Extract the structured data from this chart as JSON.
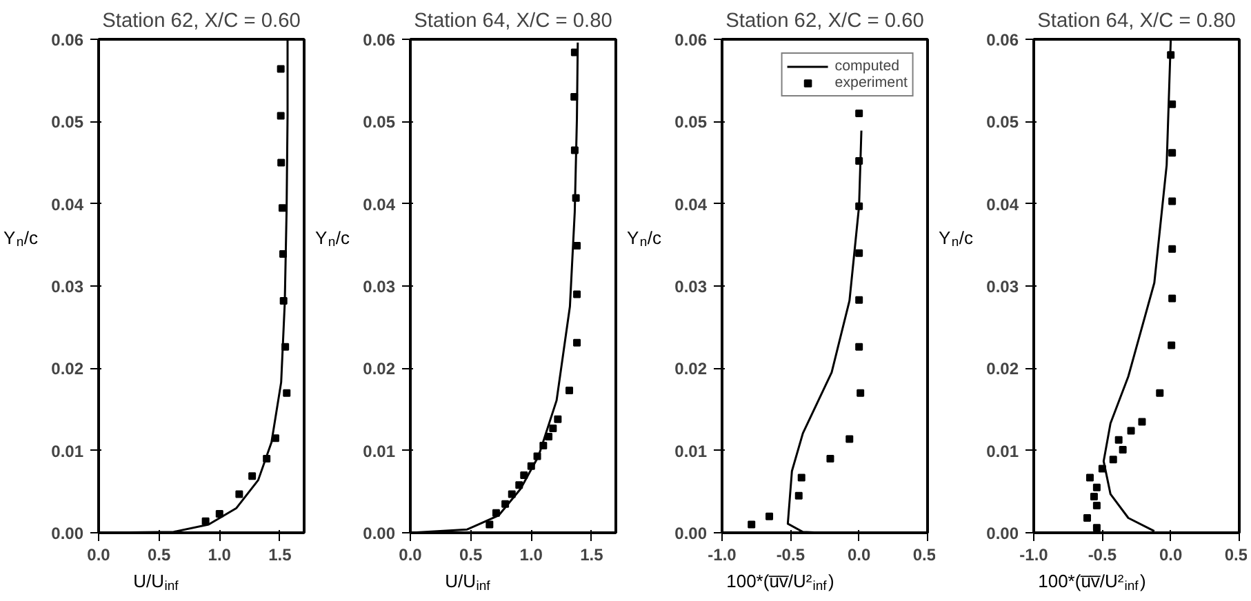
{
  "chart_data": [
    {
      "type": "line",
      "title": "Station 62, X/C = 0.60",
      "xlabel": "U/U$_{inf}$",
      "ylabel": "Y$_{n}$/c",
      "xlim": [
        0,
        1.7
      ],
      "ylim": [
        0,
        0.06
      ],
      "xticks": [
        {
          "value": 0,
          "label": "0.0"
        },
        {
          "value": 0.5,
          "label": "0.5"
        },
        {
          "value": 1,
          "label": "1.0"
        },
        {
          "value": 1.5,
          "label": "1.5"
        }
      ],
      "yticks": [
        {
          "value": 0,
          "label": "0.00"
        },
        {
          "value": 0.01,
          "label": "0.01"
        },
        {
          "value": 0.02,
          "label": "0.02"
        },
        {
          "value": 0.03,
          "label": "0.03"
        },
        {
          "value": 0.04,
          "label": "0.04"
        },
        {
          "value": 0.05,
          "label": "0.05"
        },
        {
          "value": 0.06,
          "label": "0.06"
        }
      ],
      "legend": false,
      "series": [
        {
          "color": "#000000",
          "x": [
            0,
            0.62,
            0.91,
            1.14,
            1.32,
            1.43,
            1.51,
            1.54,
            1.555,
            1.563,
            1.563
          ],
          "values": [
            0,
            0.0001,
            0.001,
            0.003,
            0.0064,
            0.011,
            0.0183,
            0.028,
            0.0393,
            0.0507,
            0.06
          ]
        },
        {
          "type": "scatter",
          "marker": "square",
          "color": "#000000",
          "x": [
            1.507,
            1.507,
            1.51,
            1.52,
            1.526,
            1.53,
            1.544,
            1.556,
            1.463,
            1.39,
            1.27,
            1.163,
            1.0,
            0.885
          ],
          "values": [
            0.0564,
            0.0507,
            0.045,
            0.0395,
            0.0339,
            0.0282,
            0.0226,
            0.017,
            0.0115,
            0.009,
            0.0069,
            0.0047,
            0.0023,
            0.0014
          ]
        }
      ]
    },
    {
      "type": "line",
      "title": "Station 64, X/C = 0.80",
      "xlabel": "U/U$_{inf}$",
      "ylabel": "Y$_{n}$/c",
      "xlim": [
        0,
        1.7
      ],
      "ylim": [
        0,
        0.06
      ],
      "xticks": [
        {
          "value": 0,
          "label": "0.0"
        },
        {
          "value": 0.5,
          "label": "0.5"
        },
        {
          "value": 1,
          "label": "1.0"
        },
        {
          "value": 1.5,
          "label": "1.5"
        }
      ],
      "yticks": [
        {
          "value": 0,
          "label": "0.00"
        },
        {
          "value": 0.01,
          "label": "0.01"
        },
        {
          "value": 0.02,
          "label": "0.02"
        },
        {
          "value": 0.03,
          "label": "0.03"
        },
        {
          "value": 0.04,
          "label": "0.04"
        },
        {
          "value": 0.05,
          "label": "0.05"
        },
        {
          "value": 0.06,
          "label": "0.06"
        }
      ],
      "legend": false,
      "series": [
        {
          "color": "#000000",
          "x": [
            0,
            0.47,
            0.73,
            0.91,
            1.06,
            1.21,
            1.32,
            1.36,
            1.378,
            1.385
          ],
          "values": [
            0,
            0.0004,
            0.0021,
            0.0053,
            0.0093,
            0.0161,
            0.0275,
            0.039,
            0.0504,
            0.0596
          ]
        },
        {
          "type": "scatter",
          "marker": "square",
          "color": "#000000",
          "x": [
            1.36,
            1.356,
            1.36,
            1.37,
            1.378,
            1.378,
            1.378,
            1.315,
            1.22,
            1.18,
            1.144,
            1.1,
            1.05,
            1.0,
            0.94,
            0.9,
            0.84,
            0.785,
            0.71,
            0.655
          ],
          "values": [
            0.0584,
            0.053,
            0.0465,
            0.0407,
            0.0349,
            0.029,
            0.0231,
            0.0173,
            0.0138,
            0.0127,
            0.0117,
            0.0106,
            0.0093,
            0.0081,
            0.007,
            0.0058,
            0.0047,
            0.0035,
            0.0024,
            0.001
          ]
        }
      ]
    },
    {
      "type": "line",
      "title": "Station 62, X/C = 0.60",
      "xlabel": "100*(u̅v̅/U²$_{inf}$)",
      "ylabel": "Y$_{n}$/c",
      "xlim": [
        -1,
        0.5
      ],
      "ylim": [
        0,
        0.06
      ],
      "xticks": [
        {
          "value": -1,
          "label": "-1.0"
        },
        {
          "value": -0.5,
          "label": "-0.5"
        },
        {
          "value": 0,
          "label": "0.0"
        },
        {
          "value": 0.5,
          "label": "0.5"
        }
      ],
      "yticks": [
        {
          "value": 0,
          "label": "0.00"
        },
        {
          "value": 0.01,
          "label": "0.01"
        },
        {
          "value": 0.02,
          "label": "0.02"
        },
        {
          "value": 0.03,
          "label": "0.03"
        },
        {
          "value": 0.04,
          "label": "0.04"
        },
        {
          "value": 0.05,
          "label": "0.05"
        },
        {
          "value": 0.06,
          "label": "0.06"
        }
      ],
      "legend": "top right",
      "series": [
        {
          "name": "computed",
          "color": "#000000",
          "x": [
            0.017,
            0,
            -0.07,
            -0.2,
            -0.41,
            -0.49,
            -0.52,
            -0.41,
            -0.27
          ],
          "values": [
            0.0489,
            0.0397,
            0.0282,
            0.0195,
            0.0121,
            0.0075,
            0.0011,
            0.0001,
            0
          ]
        },
        {
          "type": "scatter",
          "name": "experiment",
          "marker": "square",
          "color": "#000000",
          "x": [
            0,
            0,
            0,
            0,
            0,
            0,
            0.01,
            -0.07,
            -0.21,
            -0.42,
            -0.44,
            -0.655,
            -0.785
          ],
          "values": [
            0.051,
            0.0452,
            0.0397,
            0.034,
            0.0283,
            0.0226,
            0.017,
            0.0114,
            0.009,
            0.0067,
            0.0045,
            0.002,
            0.001
          ]
        }
      ]
    },
    {
      "type": "line",
      "title": "Station 64, X/C = 0.80",
      "xlabel": "100*(u̅v̅/U²$_{inf}$)",
      "ylabel": "Y$_{n}$/c",
      "xlim": [
        -1,
        0.5
      ],
      "ylim": [
        0,
        0.06
      ],
      "xticks": [
        {
          "value": -1,
          "label": "-1.0"
        },
        {
          "value": -0.5,
          "label": "-0.5"
        },
        {
          "value": 0,
          "label": "0.0"
        },
        {
          "value": 0.5,
          "label": "0.5"
        }
      ],
      "yticks": [
        {
          "value": 0,
          "label": "0.00"
        },
        {
          "value": 0.01,
          "label": "0.01"
        },
        {
          "value": 0.02,
          "label": "0.02"
        },
        {
          "value": 0.03,
          "label": "0.03"
        },
        {
          "value": 0.04,
          "label": "0.04"
        },
        {
          "value": 0.05,
          "label": "0.05"
        },
        {
          "value": 0.06,
          "label": "0.06"
        }
      ],
      "legend": false,
      "series": [
        {
          "color": "#000000",
          "x": [
            0,
            -0.03,
            -0.12,
            -0.31,
            -0.44,
            -0.49,
            -0.44,
            -0.31,
            -0.12
          ],
          "values": [
            0.06,
            0.0447,
            0.0304,
            0.019,
            0.0133,
            0.0087,
            0.0047,
            0.0018,
            0.0002
          ]
        },
        {
          "type": "scatter",
          "marker": "square",
          "color": "#000000",
          "x": [
            0,
            0.01,
            0.01,
            0.01,
            0.01,
            0.01,
            0.005,
            -0.08,
            -0.21,
            -0.29,
            -0.38,
            -0.35,
            -0.42,
            -0.5,
            -0.59,
            -0.54,
            -0.56,
            -0.54,
            -0.61,
            -0.54
          ],
          "values": [
            0.0581,
            0.0521,
            0.0462,
            0.0403,
            0.0345,
            0.0285,
            0.0228,
            0.017,
            0.0135,
            0.0124,
            0.0113,
            0.0101,
            0.0089,
            0.0078,
            0.0067,
            0.0055,
            0.0044,
            0.0033,
            0.0018,
            0.0006
          ]
        }
      ]
    }
  ]
}
